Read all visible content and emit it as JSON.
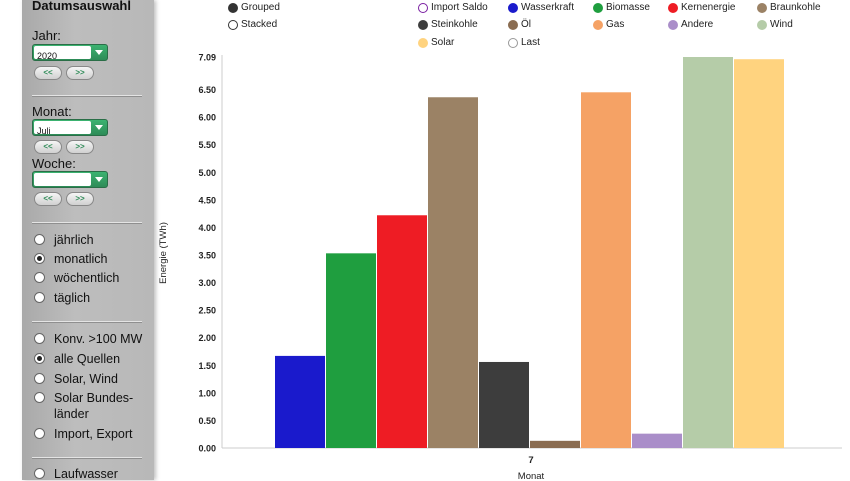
{
  "sidebar": {
    "title": "Datumsauswahl",
    "year_label": "Jahr:",
    "year_value": "2020",
    "month_label": "Monat:",
    "month_value": "Juli",
    "week_label": "Woche:",
    "week_value": "",
    "prev_label": "<<",
    "next_label": ">>",
    "period_options": [
      "jährlich",
      "monatlich",
      "wöchentlich",
      "täglich"
    ],
    "period_selected": 1,
    "source_options": [
      "Konv. >100 MW",
      "alle Quellen",
      "Solar, Wind",
      "Solar Bundes-",
      "länder",
      "Import, Export"
    ],
    "source_selected": 1,
    "extra_option": "Laufwasser"
  },
  "mode": {
    "grouped": "Grouped",
    "stacked": "Stacked",
    "selected": "grouped"
  },
  "colors": {
    "Import Saldo": "#ffffff",
    "Wasserkraft": "#1a1acc",
    "Biomasse": "#1f9e3f",
    "Kernenergie": "#ee1c24",
    "Braunkohle": "#9b8265",
    "Steinkohle": "#3d3d3d",
    "Öl": "#8a6c51",
    "Gas": "#f5a265",
    "Andere": "#aa8ec9",
    "Wind": "#b5cca8",
    "Solar": "#ffd37f",
    "Last": "#ffffff"
  },
  "chart_data": {
    "type": "bar",
    "title": "",
    "xlabel": "Monat",
    "ylabel": "Energie (TWh)",
    "categories": [
      "7"
    ],
    "ylim": [
      0,
      7.09
    ],
    "yticks": [
      "0.00",
      "0.50",
      "1.00",
      "1.50",
      "2.00",
      "2.50",
      "3.00",
      "3.50",
      "4.00",
      "4.50",
      "5.00",
      "5.50",
      "6.00",
      "6.50",
      "7.09"
    ],
    "legend_position": "top",
    "series": [
      {
        "name": "Import Saldo",
        "values": [
          0
        ]
      },
      {
        "name": "Wasserkraft",
        "values": [
          1.67
        ]
      },
      {
        "name": "Biomasse",
        "values": [
          3.53
        ]
      },
      {
        "name": "Kernenergie",
        "values": [
          4.22
        ]
      },
      {
        "name": "Braunkohle",
        "values": [
          6.36
        ]
      },
      {
        "name": "Steinkohle",
        "values": [
          1.56
        ]
      },
      {
        "name": "Öl",
        "values": [
          0.13
        ]
      },
      {
        "name": "Gas",
        "values": [
          6.45
        ]
      },
      {
        "name": "Andere",
        "values": [
          0.26
        ]
      },
      {
        "name": "Wind",
        "values": [
          7.09
        ]
      },
      {
        "name": "Solar",
        "values": [
          7.05
        ]
      },
      {
        "name": "Last",
        "values": [
          0
        ]
      }
    ]
  }
}
